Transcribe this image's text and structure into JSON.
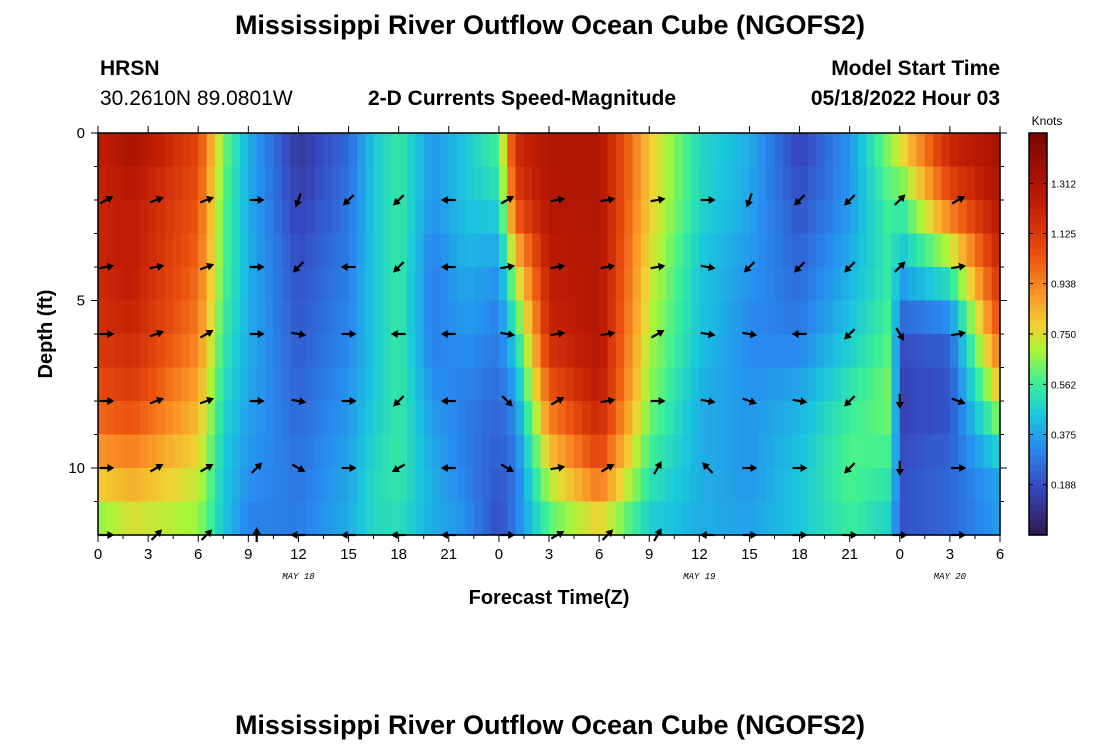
{
  "header": {
    "title": "Mississippi River Outflow Ocean Cube (NGOFS2)",
    "station": "HRSN",
    "coordinates": "30.2610N  89.0801W",
    "subtitle": "2-D Currents Speed-Magnitude",
    "model_label": "Model Start Time",
    "model_start": "05/18/2022 Hour 03"
  },
  "footer": {
    "title": "Mississippi River Outflow Ocean Cube (NGOFS2)"
  },
  "chart_data": {
    "type": "heatmap",
    "title": "2-D Currents Speed-Magnitude",
    "xlabel": "Forecast Time(Z)",
    "ylabel": "Depth (ft)",
    "x_tick_labels": [
      "0",
      "3",
      "6",
      "9",
      "12",
      "15",
      "18",
      "21",
      "0",
      "3",
      "6",
      "9",
      "12",
      "15",
      "18",
      "21",
      "0",
      "3",
      "6"
    ],
    "date_labels": [
      {
        "label": "MAY 18",
        "at_hour": 12
      },
      {
        "label": "MAY 19",
        "at_hour": 36
      },
      {
        "label": "MAY 20",
        "at_hour": 51
      }
    ],
    "xlim_hours": [
      0,
      54
    ],
    "y_tick_labels": [
      "0",
      "5",
      "10"
    ],
    "ylim": [
      0,
      12
    ],
    "y_inverted": true,
    "colorbar": {
      "unit": "Knots",
      "ticks": [
        "1.312",
        "1.125",
        "0.938",
        "0.750",
        "0.562",
        "0.375",
        "0.188"
      ],
      "range": [
        0,
        1.5
      ]
    },
    "speed_keyframes_hours": [
      0,
      2,
      6,
      7.5,
      9,
      12,
      15,
      16.5,
      18,
      20,
      22,
      24,
      25,
      27,
      30,
      33,
      36,
      39,
      42,
      45,
      47.5,
      48,
      51,
      54
    ],
    "speed_keyframes": [
      [
        1.25,
        1.35,
        1.1,
        0.65,
        0.4,
        0.12,
        0.25,
        0.45,
        0.55,
        0.35,
        0.45,
        0.6,
        1.2,
        1.3,
        1.3,
        0.8,
        0.5,
        0.4,
        0.15,
        0.35,
        0.7,
        0.8,
        1.25,
        1.35
      ],
      [
        1.2,
        1.25,
        1.05,
        0.6,
        0.4,
        0.15,
        0.28,
        0.45,
        0.55,
        0.35,
        0.45,
        0.5,
        1.1,
        1.3,
        1.3,
        0.8,
        0.5,
        0.38,
        0.2,
        0.35,
        0.6,
        0.55,
        1.05,
        1.3
      ],
      [
        1.2,
        1.25,
        1.0,
        0.6,
        0.4,
        0.2,
        0.3,
        0.45,
        0.55,
        0.3,
        0.4,
        0.35,
        0.75,
        1.25,
        1.3,
        0.75,
        0.45,
        0.35,
        0.25,
        0.4,
        0.55,
        0.4,
        0.6,
        1.2
      ],
      [
        1.15,
        1.2,
        0.95,
        0.55,
        0.4,
        0.22,
        0.32,
        0.45,
        0.55,
        0.3,
        0.35,
        0.3,
        0.5,
        1.2,
        1.3,
        0.7,
        0.45,
        0.32,
        0.3,
        0.45,
        0.6,
        0.2,
        0.25,
        1.05
      ],
      [
        1.05,
        1.1,
        0.85,
        0.5,
        0.38,
        0.25,
        0.35,
        0.45,
        0.55,
        0.35,
        0.3,
        0.25,
        0.35,
        1.0,
        1.25,
        0.65,
        0.4,
        0.35,
        0.4,
        0.55,
        0.65,
        0.15,
        0.2,
        0.75
      ],
      [
        0.85,
        0.9,
        0.75,
        0.45,
        0.35,
        0.28,
        0.38,
        0.5,
        0.55,
        0.4,
        0.3,
        0.22,
        0.28,
        0.75,
        1.05,
        0.55,
        0.4,
        0.35,
        0.45,
        0.6,
        0.55,
        0.2,
        0.25,
        0.4
      ],
      [
        0.6,
        0.7,
        0.65,
        0.45,
        0.3,
        0.3,
        0.4,
        0.5,
        0.5,
        0.4,
        0.35,
        0.18,
        0.3,
        0.55,
        0.7,
        0.45,
        0.4,
        0.38,
        0.45,
        0.55,
        0.45,
        0.2,
        0.25,
        0.35
      ]
    ],
    "arrow_hours": [
      0.5,
      3.5,
      6.5,
      9.5,
      12,
      15,
      18,
      21,
      24.5,
      27.5,
      30.5,
      33.5,
      36.5,
      39,
      42,
      45,
      48,
      51.5
    ],
    "arrow_depths": [
      2,
      4,
      6,
      8,
      10,
      12
    ],
    "arrow_directions_deg": [
      [
        60,
        70,
        70,
        90,
        200,
        225,
        225,
        270,
        60,
        80,
        80,
        80,
        90,
        200,
        225,
        225,
        45,
        60
      ],
      [
        80,
        80,
        70,
        90,
        225,
        270,
        225,
        270,
        80,
        80,
        80,
        80,
        100,
        225,
        225,
        225,
        45,
        80
      ],
      [
        90,
        70,
        60,
        90,
        100,
        90,
        270,
        270,
        100,
        80,
        80,
        60,
        100,
        100,
        270,
        225,
        150,
        80
      ],
      [
        90,
        70,
        70,
        90,
        100,
        90,
        225,
        270,
        135,
        60,
        80,
        90,
        100,
        110,
        100,
        225,
        180,
        110
      ],
      [
        90,
        60,
        60,
        45,
        120,
        90,
        240,
        270,
        120,
        80,
        60,
        30,
        315,
        90,
        90,
        225,
        180,
        90
      ],
      [
        90,
        45,
        45,
        0,
        270,
        270,
        270,
        270,
        90,
        60,
        45,
        30,
        270,
        90,
        90,
        90,
        90,
        90
      ]
    ]
  }
}
